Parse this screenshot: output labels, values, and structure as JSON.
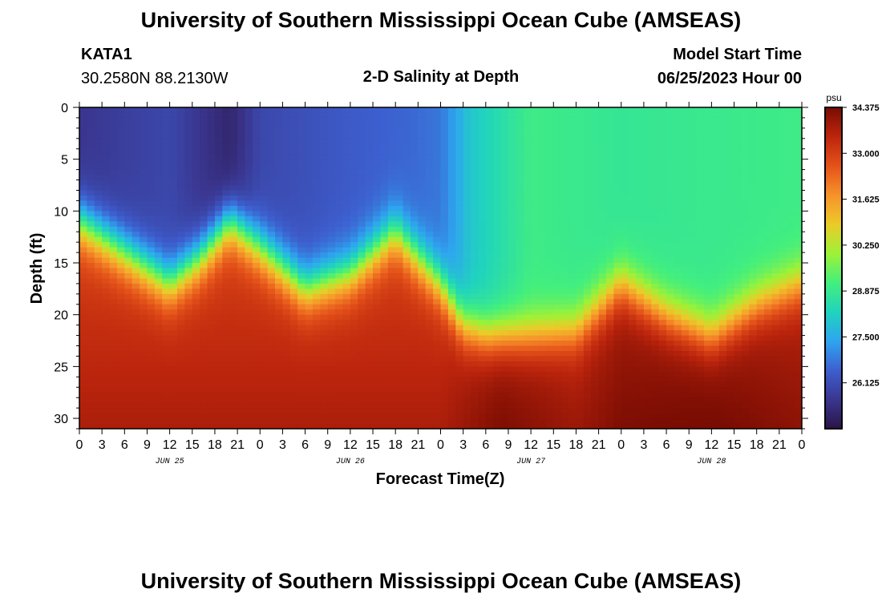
{
  "header": {
    "title": "University of Southern Mississippi Ocean Cube (AMSEAS)",
    "station_id": "KATA1",
    "station_coords": "30.2580N  88.2130W",
    "model_start_label": "Model Start Time",
    "model_start_value": "06/25/2023 Hour 00"
  },
  "footer": {
    "title": "University of Southern Mississippi Ocean Cube (AMSEAS)"
  },
  "colors": {
    "scale": [
      "#2a1446",
      "#3a3690",
      "#3d5fcf",
      "#2ea5f0",
      "#20d4bd",
      "#43ef7d",
      "#9ef236",
      "#ecca29",
      "#f7922a",
      "#e4521a",
      "#bc250d",
      "#790c03"
    ]
  },
  "chart_data": {
    "type": "heatmap",
    "title": "2-D Salinity at Depth",
    "xlabel": "Forecast Time(Z)",
    "ylabel": "Depth (ft)",
    "x_range_hours": [
      0,
      96
    ],
    "ylim": [
      0,
      31
    ],
    "y_ticks": [
      "0",
      "5",
      "10",
      "15",
      "20",
      "25",
      "30"
    ],
    "x_tick_labels": [
      "0",
      "3",
      "6",
      "9",
      "12",
      "15",
      "18",
      "21",
      "0",
      "3",
      "6",
      "9",
      "12",
      "15",
      "18",
      "21",
      "0",
      "3",
      "6",
      "9",
      "12",
      "15",
      "18",
      "21",
      "0",
      "3",
      "6",
      "9",
      "12",
      "15",
      "18",
      "21",
      "0"
    ],
    "date_labels": [
      {
        "label": "JUN 25",
        "hour": 12
      },
      {
        "label": "JUN 26",
        "hour": 36
      },
      {
        "label": "JUN 27",
        "hour": 60
      },
      {
        "label": "JUN 28",
        "hour": 84
      }
    ],
    "colorbar": {
      "unit": "psu",
      "range": [
        24.75,
        34.375
      ],
      "tick_labels": [
        "34.375",
        "33.000",
        "31.625",
        "30.250",
        "28.875",
        "27.500",
        "26.125"
      ],
      "tick_values": [
        34.375,
        33.0,
        31.625,
        30.25,
        28.875,
        27.5,
        26.125
      ]
    },
    "halocline_depth_ft": {
      "hours": [
        0,
        6,
        12,
        16,
        20,
        24,
        30,
        36,
        42,
        48,
        51,
        54,
        60,
        66,
        72,
        78,
        84,
        90,
        96
      ],
      "depths": [
        11,
        14,
        17,
        14.5,
        11,
        13.5,
        17.5,
        16,
        12,
        17,
        21,
        22,
        22,
        21.5,
        17,
        20,
        22,
        19,
        17
      ]
    },
    "surface_salinity_psu": {
      "hours": [
        0,
        12,
        20,
        24,
        36,
        44,
        48,
        52,
        60,
        72,
        84,
        96
      ],
      "values": [
        25.6,
        26.0,
        25.2,
        26.0,
        26.4,
        26.6,
        26.8,
        28.0,
        29.0,
        28.8,
        28.9,
        29.0
      ]
    },
    "bottom_salinity_psu": {
      "hours": [
        0,
        48,
        56,
        66,
        72,
        84,
        96
      ],
      "values": [
        33.7,
        33.7,
        34.3,
        33.9,
        34.3,
        34.4,
        34.1
      ]
    }
  }
}
